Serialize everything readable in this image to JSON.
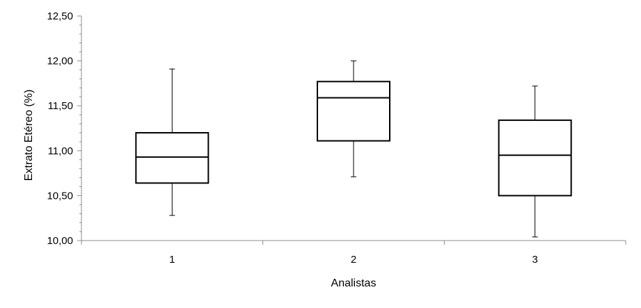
{
  "chart_data": {
    "type": "boxplot",
    "title": "",
    "xlabel": "Analistas",
    "ylabel": "Extrato Etéreo (%)",
    "ylim": [
      10.0,
      12.5
    ],
    "yticks": [
      "10,00",
      "10,50",
      "11,00",
      "11,50",
      "12,00",
      "12,50"
    ],
    "categories": [
      "1",
      "2",
      "3"
    ],
    "boxes": [
      {
        "category": "1",
        "min": 10.28,
        "q1": 10.64,
        "median": 10.93,
        "q3": 11.2,
        "max": 11.91
      },
      {
        "category": "2",
        "min": 10.71,
        "q1": 11.11,
        "median": 11.59,
        "q3": 11.77,
        "max": 12.0
      },
      {
        "category": "3",
        "min": 10.04,
        "q1": 10.5,
        "median": 10.95,
        "q3": 11.34,
        "max": 11.72
      }
    ],
    "grid": false,
    "legend": "none"
  }
}
